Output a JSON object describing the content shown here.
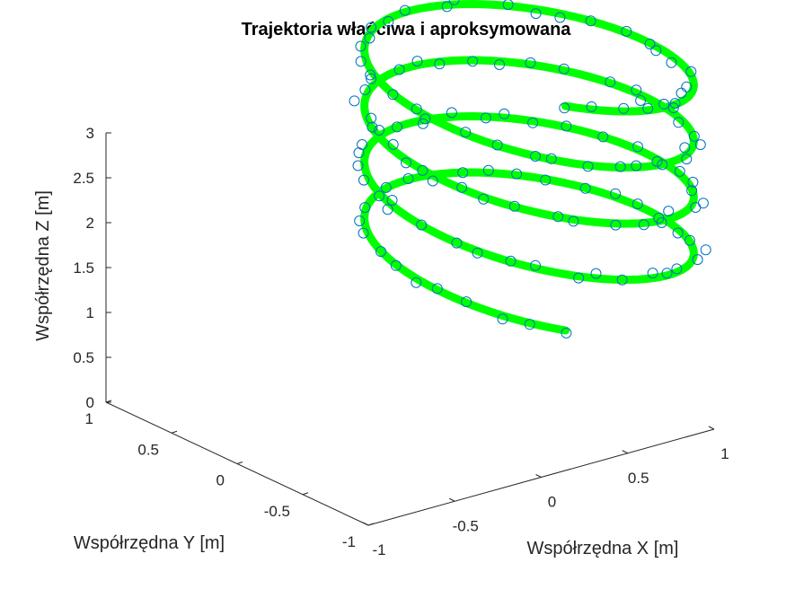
{
  "chart_data": {
    "type": "line",
    "title": "Trajektoria właściwa i aproksymowana",
    "xlabel": "Współrzędna X [m]",
    "ylabel": "Współrzędna Y [m]",
    "zlabel": "Współrzędna Z [m]",
    "xlim": [
      -1,
      1
    ],
    "ylim": [
      -1,
      1
    ],
    "zlim": [
      0,
      3
    ],
    "x_ticks": [
      "-1",
      "-0.5",
      "0",
      "0.5",
      "1"
    ],
    "y_ticks": [
      "-1",
      "-0.5",
      "0",
      "0.5",
      "1"
    ],
    "z_ticks": [
      "0",
      "0.5",
      "1",
      "1.5",
      "2",
      "2.5",
      "3"
    ],
    "view": "3d",
    "grid": false,
    "series": [
      {
        "style": "line",
        "color": "#00ff00",
        "curve": "helix",
        "radius": 1,
        "z_range": [
          0.5,
          3
        ],
        "turns": 4,
        "start_angle_deg": 130
      },
      {
        "style": "markers",
        "marker": "circle",
        "color": "#0072bd",
        "curve": "helix",
        "radius": 1,
        "z_range": [
          0.5,
          3
        ],
        "turns": 4,
        "start_angle_deg": 130,
        "points": 130,
        "noise": 0.06
      }
    ]
  }
}
